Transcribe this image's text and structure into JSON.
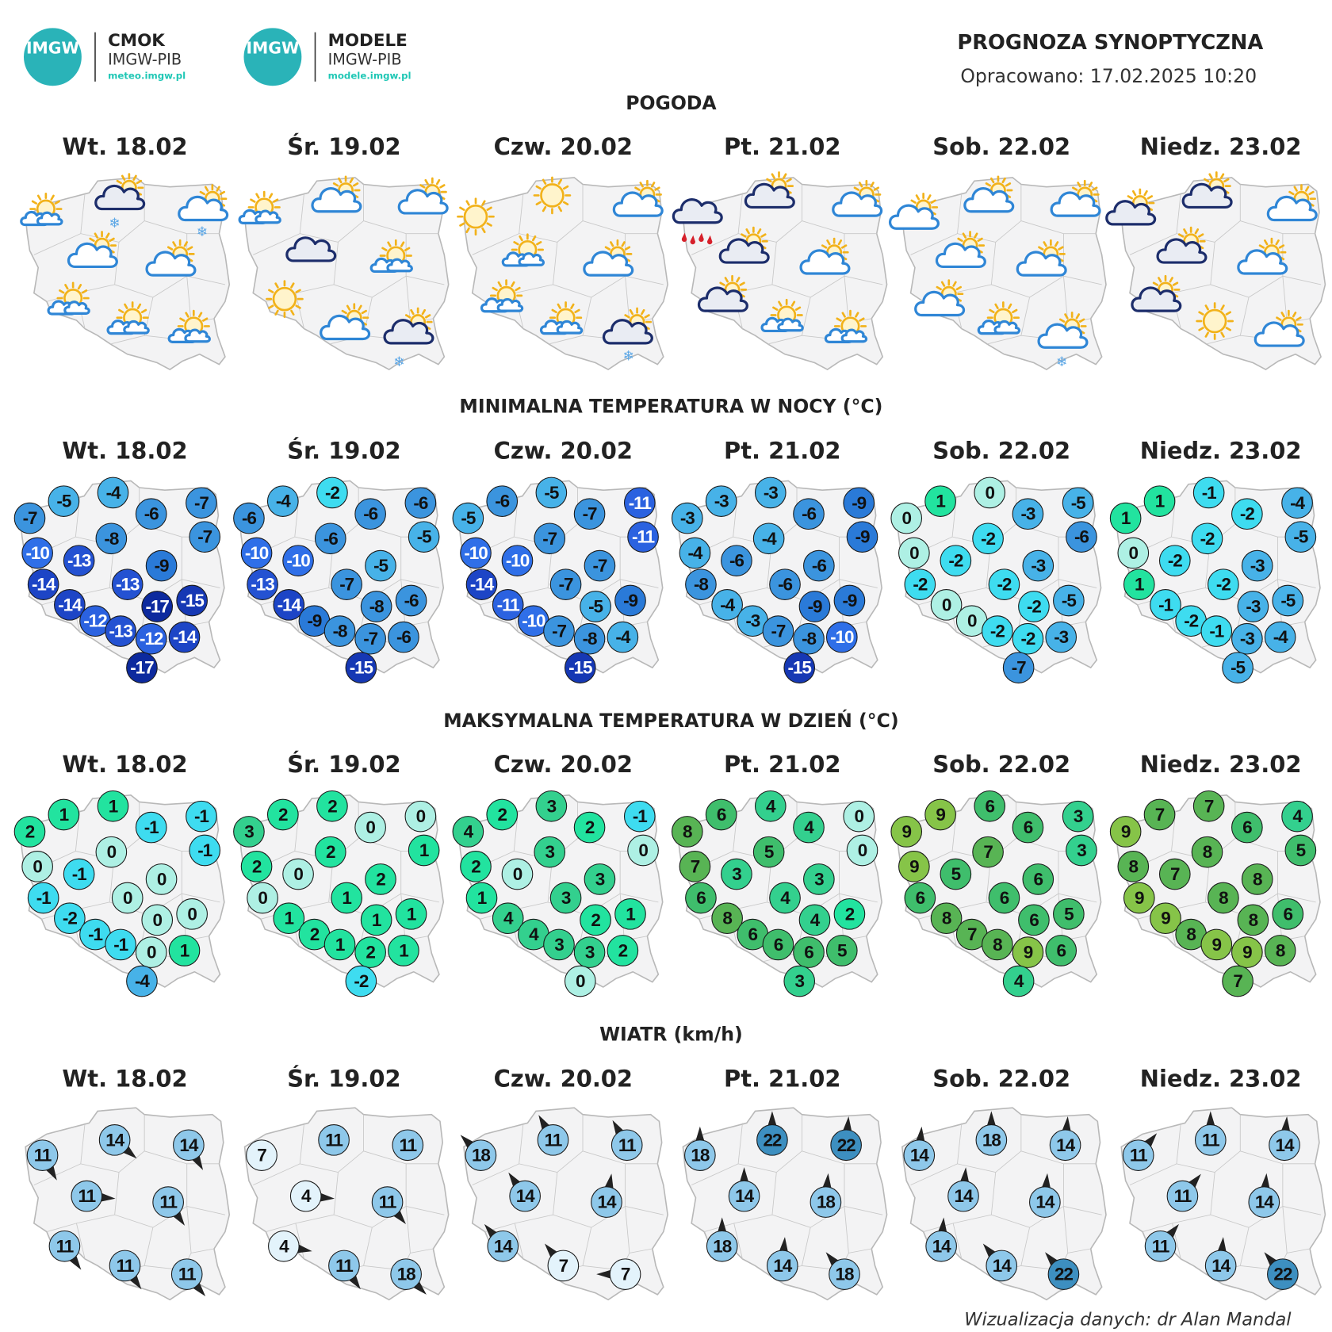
{
  "header": {
    "logo1": {
      "mark": "IMGW",
      "name": "CMOK",
      "org": "IMGW-PIB",
      "url": "meteo.imgw.pl"
    },
    "logo2": {
      "mark": "IMGW",
      "name": "MODELE",
      "org": "IMGW-PIB",
      "url": "modele.imgw.pl"
    },
    "title": "PROGNOZA SYNOPTYCZNA",
    "issued": "Opracowano: 17.02.2025 10:20"
  },
  "sections": {
    "weather": "POGODA",
    "tmin": "MINIMALNA TEMPERATURA W NOCY (°C)",
    "tmax": "MAKSYMALNA TEMPERATURA W DZIEŃ (°C)",
    "wind": "WIATR (km/h)"
  },
  "days": [
    "Wt. 18.02",
    "Śr. 19.02",
    "Czw. 20.02",
    "Pt. 21.02",
    "Sob. 22.02",
    "Niedz. 23.02"
  ],
  "weather": [
    [
      "sun-small-cloud",
      "dark-cloud-sun",
      "snow",
      "cloud-sun",
      "snow",
      "cloud-sun",
      "cloud-sun",
      "sun-small-cloud",
      "sun-small-cloud",
      "sun-small-cloud"
    ],
    [
      "sun-small-cloud",
      "cloud-sun",
      "cloud-sun",
      "dark-cloud",
      "sun-small-cloud",
      "sun",
      "cloud-sun",
      "dark-cloud-sun",
      "snow"
    ],
    [
      "sun",
      "sun",
      "cloud-sun",
      "sun-small-cloud",
      "cloud-sun",
      "sun-small-cloud",
      "sun-small-cloud",
      "dark-cloud-sun",
      "snow"
    ],
    [
      "dark-cloud",
      "rain",
      "dark-cloud-sun",
      "cloud-sun",
      "dark-cloud-sun",
      "cloud-sun",
      "dark-cloud-sun",
      "sun-small-cloud",
      "sun-small-cloud"
    ],
    [
      "cloud-sun",
      "cloud-sun",
      "cloud-sun",
      "cloud-sun",
      "cloud-sun",
      "cloud-sun",
      "sun-small-cloud",
      "cloud-sun",
      "snow"
    ],
    [
      "dark-cloud-sun",
      "dark-cloud-sun",
      "cloud-sun",
      "dark-cloud-sun",
      "cloud-sun",
      "dark-cloud-sun",
      "sun",
      "cloud-sun"
    ]
  ],
  "tmin": [
    [
      -5,
      -4,
      -7,
      -6,
      -7,
      -7,
      -8,
      -10,
      -13,
      -9,
      -14,
      -13,
      -14,
      -17,
      -15,
      -12,
      -13,
      -12,
      -14,
      -17
    ],
    [
      -4,
      -2,
      -6,
      -6,
      -6,
      -5,
      -6,
      -10,
      -10,
      -5,
      -13,
      -7,
      -14,
      -8,
      -6,
      -9,
      -8,
      -7,
      -6,
      -15
    ],
    [
      -6,
      -5,
      -5,
      -7,
      -11,
      -11,
      -7,
      -10,
      -10,
      -7,
      -14,
      -7,
      -11,
      -5,
      -9,
      -10,
      -7,
      -8,
      -4,
      -15
    ],
    [
      -3,
      -3,
      -3,
      -6,
      -9,
      -9,
      -4,
      -4,
      -6,
      -6,
      -8,
      -6,
      -4,
      -9,
      -9,
      -3,
      -7,
      -8,
      -10,
      -15
    ],
    [
      1,
      0,
      0,
      -3,
      -5,
      -6,
      -2,
      0,
      -2,
      -3,
      -2,
      -2,
      0,
      -2,
      -5,
      0,
      -2,
      -2,
      -3,
      -7
    ],
    [
      1,
      -1,
      1,
      -2,
      -4,
      -5,
      -2,
      0,
      -2,
      -3,
      1,
      -2,
      -1,
      -3,
      -5,
      -2,
      -1,
      -3,
      -4,
      -5
    ]
  ],
  "tmax": [
    [
      1,
      1,
      2,
      -1,
      -1,
      -1,
      0,
      0,
      -1,
      0,
      -1,
      0,
      -2,
      0,
      0,
      -1,
      -1,
      0,
      1,
      -4
    ],
    [
      2,
      2,
      3,
      0,
      0,
      1,
      2,
      2,
      0,
      2,
      0,
      1,
      1,
      1,
      1,
      2,
      1,
      2,
      1,
      -2
    ],
    [
      2,
      3,
      4,
      2,
      -1,
      0,
      3,
      2,
      0,
      3,
      1,
      3,
      4,
      2,
      1,
      4,
      3,
      3,
      2,
      0
    ],
    [
      6,
      4,
      8,
      4,
      0,
      0,
      5,
      7,
      3,
      3,
      6,
      4,
      8,
      4,
      2,
      6,
      6,
      6,
      5,
      3
    ],
    [
      9,
      6,
      9,
      6,
      3,
      3,
      7,
      9,
      5,
      6,
      6,
      6,
      8,
      6,
      5,
      7,
      8,
      9,
      6,
      4
    ],
    [
      7,
      7,
      9,
      6,
      4,
      5,
      8,
      8,
      7,
      8,
      9,
      8,
      9,
      8,
      6,
      8,
      9,
      9,
      8,
      7
    ]
  ],
  "wind": {
    "speed": [
      [
        11,
        14,
        14,
        11,
        11,
        11,
        11,
        11
      ],
      [
        7,
        11,
        11,
        4,
        11,
        4,
        11,
        18
      ],
      [
        18,
        11,
        11,
        14,
        14,
        14,
        7,
        7
      ],
      [
        18,
        22,
        22,
        14,
        18,
        18,
        14,
        18
      ],
      [
        14,
        18,
        14,
        14,
        14,
        14,
        14,
        22
      ],
      [
        11,
        11,
        14,
        11,
        14,
        11,
        14,
        22
      ]
    ],
    "direction_deg": [
      [
        150,
        130,
        150,
        95,
        145,
        145,
        145,
        140
      ],
      [
        null,
        null,
        null,
        95,
        140,
        100,
        145,
        135
      ],
      [
        315,
        330,
        330,
        325,
        10,
        320,
        320,
        270
      ],
      [
        0,
        0,
        5,
        0,
        5,
        0,
        5,
        320
      ],
      [
        5,
        0,
        5,
        5,
        5,
        5,
        320,
        320
      ],
      [
        40,
        0,
        5,
        40,
        5,
        40,
        5,
        320
      ]
    ]
  },
  "colors": {
    "title_text": "#222222",
    "logo_teal": "#2ab3b8",
    "url_teal": "#1fc7b5",
    "sun": "#f2b21a",
    "cloud_outline": "#2f86d6",
    "dark_cloud_outline": "#1c2d6b",
    "wind_light": "#e3f3fb",
    "wind_mid": "#8ec8ea",
    "wind_strong": "#3d8fc0"
  },
  "footer": "Wizualizacja danych: dr Alan Mandal"
}
